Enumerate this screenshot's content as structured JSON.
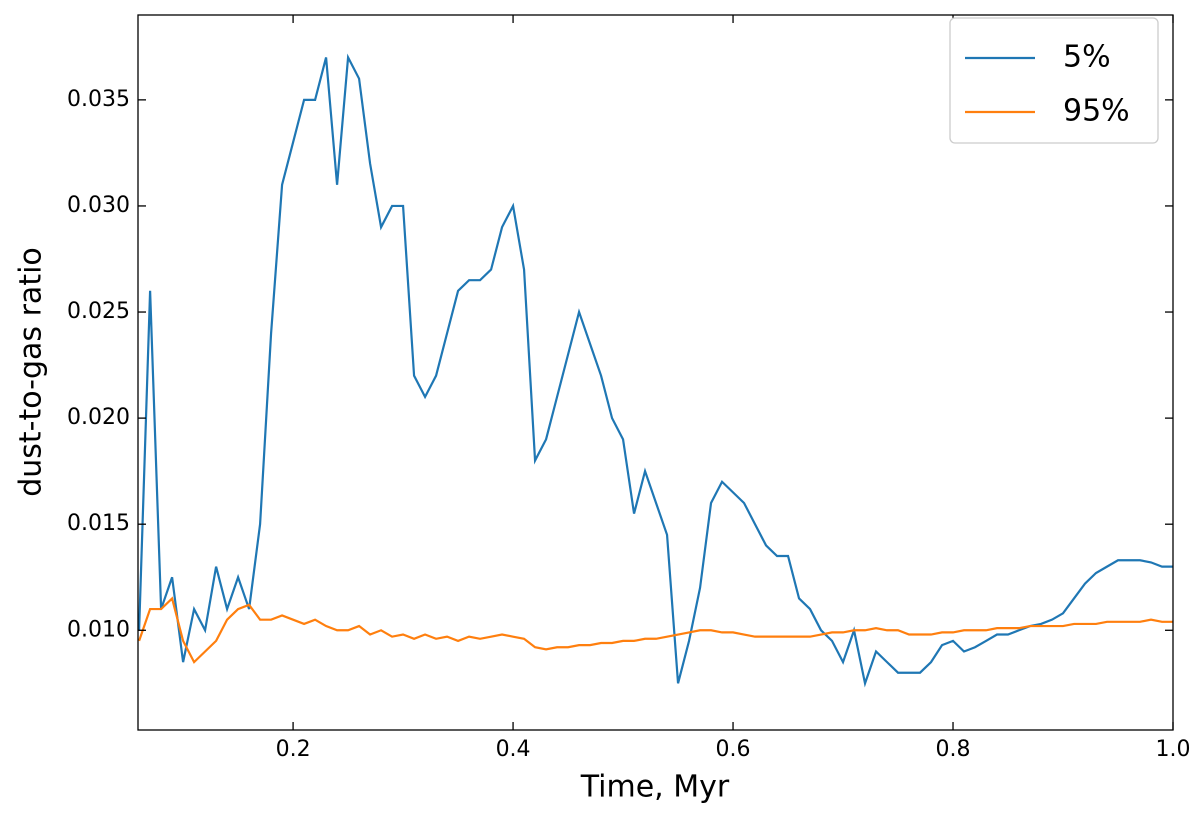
{
  "chart_data": {
    "type": "line",
    "x_label": "Time, Myr",
    "y_label": "dust-to-gas ratio",
    "x": [
      0.06,
      0.07,
      0.08,
      0.09,
      0.1,
      0.11,
      0.12,
      0.13,
      0.14,
      0.15,
      0.16,
      0.17,
      0.18,
      0.19,
      0.2,
      0.21,
      0.22,
      0.23,
      0.24,
      0.25,
      0.26,
      0.27,
      0.28,
      0.29,
      0.3,
      0.31,
      0.32,
      0.33,
      0.34,
      0.35,
      0.36,
      0.37,
      0.38,
      0.39,
      0.4,
      0.41,
      0.42,
      0.43,
      0.44,
      0.45,
      0.46,
      0.47,
      0.48,
      0.49,
      0.5,
      0.51,
      0.52,
      0.53,
      0.54,
      0.55,
      0.56,
      0.57,
      0.58,
      0.59,
      0.6,
      0.61,
      0.62,
      0.63,
      0.64,
      0.65,
      0.66,
      0.67,
      0.68,
      0.69,
      0.7,
      0.71,
      0.72,
      0.73,
      0.74,
      0.75,
      0.76,
      0.77,
      0.78,
      0.79,
      0.8,
      0.81,
      0.82,
      0.83,
      0.84,
      0.85,
      0.86,
      0.87,
      0.88,
      0.89,
      0.9,
      0.91,
      0.92,
      0.93,
      0.94,
      0.95,
      0.96,
      0.97,
      0.98,
      0.99,
      1.0
    ],
    "series": [
      {
        "name": "5%",
        "color": "#1f77b4",
        "values": [
          0.01,
          0.026,
          0.011,
          0.0125,
          0.0085,
          0.011,
          0.01,
          0.013,
          0.011,
          0.0125,
          0.011,
          0.015,
          0.024,
          0.031,
          0.033,
          0.035,
          0.035,
          0.037,
          0.031,
          0.037,
          0.036,
          0.032,
          0.029,
          0.03,
          0.03,
          0.022,
          0.021,
          0.022,
          0.024,
          0.026,
          0.0265,
          0.0265,
          0.027,
          0.029,
          0.03,
          0.027,
          0.018,
          0.019,
          0.021,
          0.023,
          0.025,
          0.0235,
          0.022,
          0.02,
          0.019,
          0.0155,
          0.0175,
          0.016,
          0.0145,
          0.0075,
          0.0095,
          0.012,
          0.016,
          0.017,
          0.0165,
          0.016,
          0.015,
          0.014,
          0.0135,
          0.0135,
          0.0115,
          0.011,
          0.01,
          0.0095,
          0.0085,
          0.01,
          0.0075,
          0.009,
          0.0085,
          0.008,
          0.008,
          0.008,
          0.0085,
          0.0093,
          0.0095,
          0.009,
          0.0092,
          0.0095,
          0.0098,
          0.0098,
          0.01,
          0.0102,
          0.0103,
          0.0105,
          0.0108,
          0.0115,
          0.0122,
          0.0127,
          0.013,
          0.0133,
          0.0133,
          0.0133,
          0.0132,
          0.013,
          0.013
        ]
      },
      {
        "name": "95%",
        "color": "#ff7f0e",
        "values": [
          0.0095,
          0.011,
          0.011,
          0.0115,
          0.0095,
          0.0085,
          0.009,
          0.0095,
          0.0105,
          0.011,
          0.0112,
          0.0105,
          0.0105,
          0.0107,
          0.0105,
          0.0103,
          0.0105,
          0.0102,
          0.01,
          0.01,
          0.0102,
          0.0098,
          0.01,
          0.0097,
          0.0098,
          0.0096,
          0.0098,
          0.0096,
          0.0097,
          0.0095,
          0.0097,
          0.0096,
          0.0097,
          0.0098,
          0.0097,
          0.0096,
          0.0092,
          0.0091,
          0.0092,
          0.0092,
          0.0093,
          0.0093,
          0.0094,
          0.0094,
          0.0095,
          0.0095,
          0.0096,
          0.0096,
          0.0097,
          0.0098,
          0.0099,
          0.01,
          0.01,
          0.0099,
          0.0099,
          0.0098,
          0.0097,
          0.0097,
          0.0097,
          0.0097,
          0.0097,
          0.0097,
          0.0098,
          0.0099,
          0.0099,
          0.01,
          0.01,
          0.0101,
          0.01,
          0.01,
          0.0098,
          0.0098,
          0.0098,
          0.0099,
          0.0099,
          0.01,
          0.01,
          0.01,
          0.0101,
          0.0101,
          0.0101,
          0.0102,
          0.0102,
          0.0102,
          0.0102,
          0.0103,
          0.0103,
          0.0103,
          0.0104,
          0.0104,
          0.0104,
          0.0104,
          0.0105,
          0.0104,
          0.0104
        ]
      }
    ],
    "xlim": [
      0.059,
      1.0
    ],
    "ylim": [
      0.0053,
      0.039
    ],
    "xticks": [
      0.2,
      0.4,
      0.6,
      0.8,
      {
        "value": 1,
        "label": "1.0"
      }
    ],
    "yticks": [
      {
        "value": 0.01,
        "label": "0.010"
      },
      {
        "value": 0.015,
        "label": "0.015"
      },
      {
        "value": 0.02,
        "label": "0.020"
      },
      {
        "value": 0.025,
        "label": "0.025"
      },
      {
        "value": 0.03,
        "label": "0.030"
      },
      {
        "value": 0.035,
        "label": "0.035"
      }
    ],
    "legend": "upper-right",
    "grid": false
  }
}
